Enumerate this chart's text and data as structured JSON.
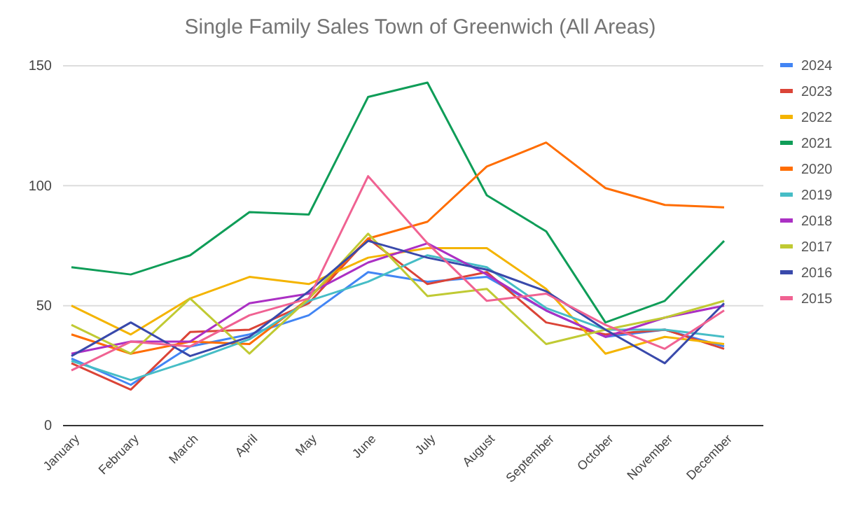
{
  "chart_data": {
    "type": "line",
    "title": "Single Family Sales Town of Greenwich (All Areas)",
    "categories": [
      "January",
      "February",
      "March",
      "April",
      "May",
      "June",
      "July",
      "August",
      "September",
      "October",
      "November",
      "December"
    ],
    "series": [
      {
        "name": "2024",
        "color": "#4285f4",
        "values": [
          28,
          17,
          33,
          38,
          46,
          64,
          60,
          62,
          48,
          37,
          40,
          33
        ]
      },
      {
        "name": "2023",
        "color": "#db4437",
        "values": [
          26,
          15,
          39,
          40,
          51,
          78,
          59,
          64,
          43,
          38,
          40,
          32
        ]
      },
      {
        "name": "2022",
        "color": "#f4b400",
        "values": [
          50,
          38,
          53,
          62,
          59,
          70,
          74,
          74,
          57,
          30,
          37,
          34
        ]
      },
      {
        "name": "2021",
        "color": "#0f9d58",
        "values": [
          66,
          63,
          71,
          89,
          88,
          137,
          143,
          96,
          81,
          43,
          52,
          77
        ]
      },
      {
        "name": "2020",
        "color": "#ff6d01",
        "values": [
          38,
          30,
          35,
          34,
          53,
          78,
          85,
          108,
          118,
          99,
          92,
          91
        ]
      },
      {
        "name": "2019",
        "color": "#46bdc6",
        "values": [
          27,
          19,
          27,
          36,
          52,
          60,
          71,
          66,
          49,
          40,
          40,
          37
        ]
      },
      {
        "name": "2018",
        "color": "#ab30c4",
        "values": [
          30,
          35,
          35,
          51,
          55,
          68,
          76,
          63,
          48,
          37,
          45,
          50
        ]
      },
      {
        "name": "2017",
        "color": "#c0ca33",
        "values": [
          42,
          30,
          53,
          30,
          53,
          80,
          54,
          57,
          34,
          40,
          45,
          52
        ]
      },
      {
        "name": "2016",
        "color": "#3949ab",
        "values": [
          29,
          43,
          29,
          37,
          56,
          77,
          70,
          65,
          56,
          40,
          26,
          51
        ]
      },
      {
        "name": "2015",
        "color": "#f06292",
        "values": [
          23,
          35,
          33,
          46,
          53,
          104,
          76,
          52,
          55,
          42,
          32,
          48
        ]
      }
    ],
    "ylim": [
      0,
      150
    ],
    "yticks": [
      0,
      50,
      100,
      150
    ],
    "grid": "y",
    "legend": "right",
    "marker": "none",
    "line_style": "solid"
  }
}
